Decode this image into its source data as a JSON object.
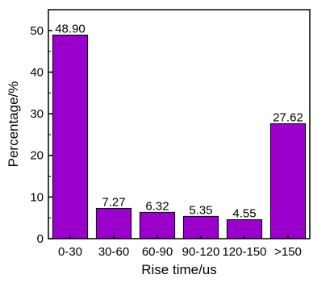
{
  "chart_data": {
    "type": "bar",
    "categories": [
      "0-30",
      "30-60",
      "60-90",
      "90-120",
      "120-150",
      ">150"
    ],
    "values": [
      48.9,
      7.27,
      6.32,
      5.35,
      4.55,
      27.62
    ],
    "value_labels": [
      "48.90",
      "7.27",
      "6.32",
      "5.35",
      "4.55",
      "27.62"
    ],
    "title": "",
    "xlabel": "Rise time/us",
    "ylabel": "Percentage/%",
    "ylim": [
      0,
      55
    ],
    "yticks": [
      0,
      10,
      20,
      30,
      40,
      50
    ],
    "grid": false,
    "bar_color": "#9900cc"
  }
}
